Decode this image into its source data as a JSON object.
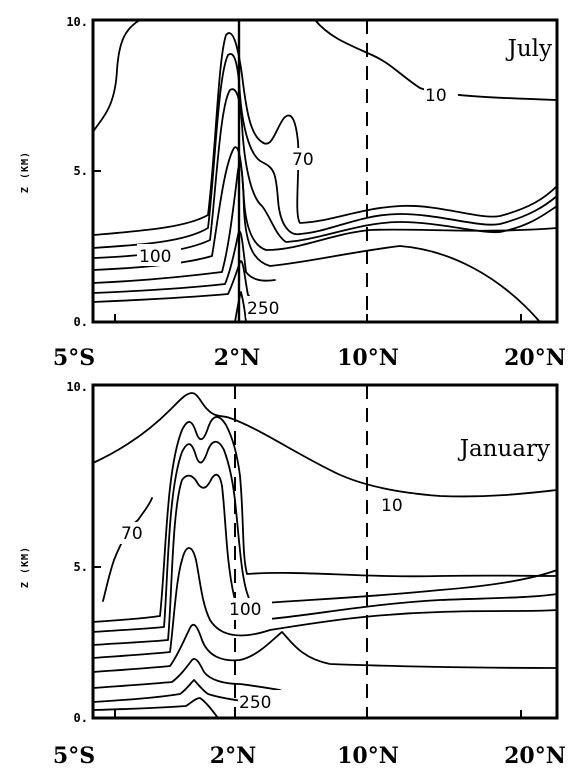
{
  "chart_data": [
    {
      "type": "contour",
      "title": "July",
      "ylabel": "Z (KM)",
      "yticks": [
        "0.",
        "5.",
        "10."
      ],
      "ylim": [
        0,
        10
      ],
      "xticks": [
        "5°S",
        "2°N",
        "10°N",
        "20°N"
      ],
      "xtick_values": [
        -5,
        2,
        10,
        20
      ],
      "xlim": [
        -6,
        22
      ],
      "reference_lines": [
        {
          "x": 2,
          "style": "solid"
        },
        {
          "x": 10,
          "style": "dashed"
        }
      ],
      "contour_labels": [
        "10",
        "70",
        "100",
        "250"
      ]
    },
    {
      "type": "contour",
      "title": "January",
      "ylabel": "Z (KM)",
      "yticks": [
        "0.",
        "5.",
        "10."
      ],
      "ylim": [
        0,
        10
      ],
      "xticks": [
        "5°S",
        "2°N",
        "10°N",
        "20°N"
      ],
      "xtick_values": [
        -5,
        2,
        10,
        20
      ],
      "xlim": [
        -6,
        22
      ],
      "reference_lines": [
        {
          "x": 2,
          "style": "dashed"
        },
        {
          "x": 10,
          "style": "dashed"
        }
      ],
      "contour_labels": [
        "10",
        "70",
        "100",
        "250"
      ]
    }
  ]
}
